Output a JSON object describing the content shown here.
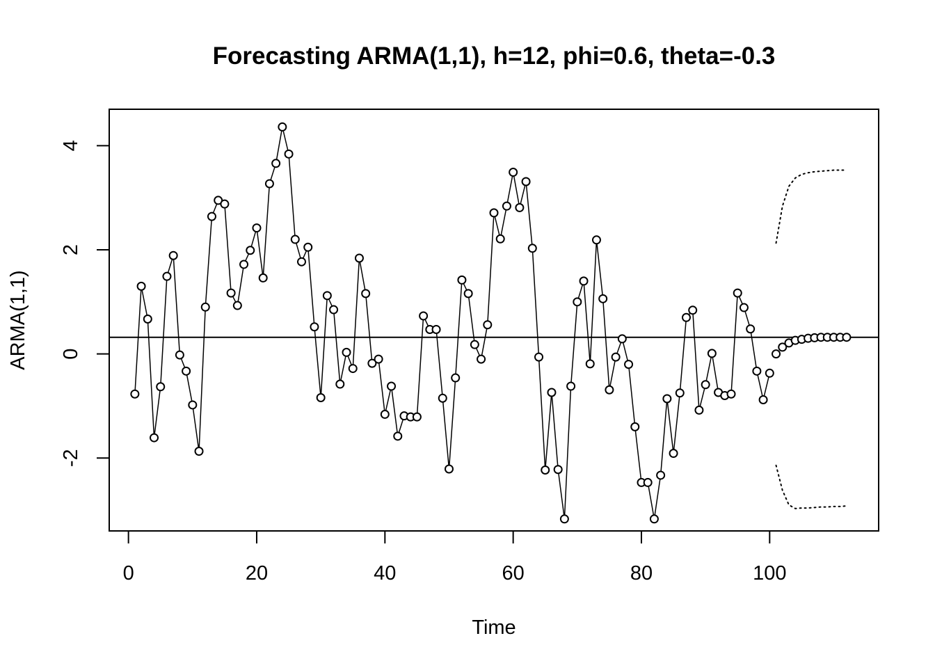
{
  "chart_data": {
    "type": "line",
    "title": "Forecasting ARMA(1,1), h=12, phi=0.6, theta=-0.3",
    "xlabel": "Time",
    "ylabel": "ARMA(1,1)",
    "xlim": [
      -3,
      117
    ],
    "ylim": [
      -3.4,
      4.7
    ],
    "x_ticks": [
      0,
      20,
      40,
      60,
      80,
      100
    ],
    "y_ticks": [
      -2,
      0,
      2,
      4
    ],
    "mean_line": 0.32,
    "series": [
      {
        "style": "line-points",
        "x_start": 1,
        "values": [
          -0.77,
          1.3,
          0.67,
          -1.61,
          -0.63,
          1.49,
          1.89,
          -0.02,
          -0.33,
          -0.98,
          -1.87,
          0.9,
          2.64,
          2.95,
          2.88,
          1.17,
          0.93,
          1.72,
          1.99,
          2.42,
          1.46,
          3.27,
          3.66,
          4.36,
          3.84,
          2.2,
          1.77,
          2.05,
          0.52,
          -0.84,
          1.12,
          0.85,
          -0.58,
          0.03,
          -0.28,
          1.84,
          1.16,
          -0.18,
          -0.1,
          -1.16,
          -0.62,
          -1.58,
          -1.19,
          -1.21,
          -1.21,
          0.73,
          0.47,
          0.47,
          -0.85,
          -2.21,
          -0.46,
          1.42,
          1.16,
          0.18,
          -0.1,
          0.56,
          2.71,
          2.21,
          2.84,
          3.49,
          2.81,
          3.31,
          2.03,
          -0.06,
          -2.23,
          -0.74,
          -2.22,
          -3.17,
          -0.62,
          1.0,
          1.4,
          -0.19,
          2.19,
          1.06,
          -0.69,
          -0.06,
          0.29,
          -0.2,
          -1.4,
          -2.47,
          -2.47,
          -3.17,
          -2.33,
          -0.86,
          -1.91,
          -0.75,
          0.7,
          0.84,
          -1.08,
          -0.59,
          0.01,
          -0.74,
          -0.8,
          -0.77,
          1.17,
          0.89,
          0.48,
          -0.33,
          -0.88,
          -0.37
        ]
      },
      {
        "style": "points",
        "x_start": 101,
        "values": [
          0.0,
          0.13,
          0.21,
          0.26,
          0.28,
          0.3,
          0.31,
          0.32,
          0.32,
          0.32,
          0.32,
          0.32
        ]
      },
      {
        "style": "dotted",
        "x_start": 101,
        "values": [
          2.13,
          2.84,
          3.22,
          3.38,
          3.45,
          3.48,
          3.5,
          3.51,
          3.52,
          3.53,
          3.53,
          3.53
        ]
      },
      {
        "style": "dotted",
        "x_start": 101,
        "values": [
          -2.14,
          -2.62,
          -2.9,
          -2.97,
          -2.96,
          -2.96,
          -2.95,
          -2.94,
          -2.94,
          -2.93,
          -2.93,
          -2.92
        ]
      }
    ]
  }
}
